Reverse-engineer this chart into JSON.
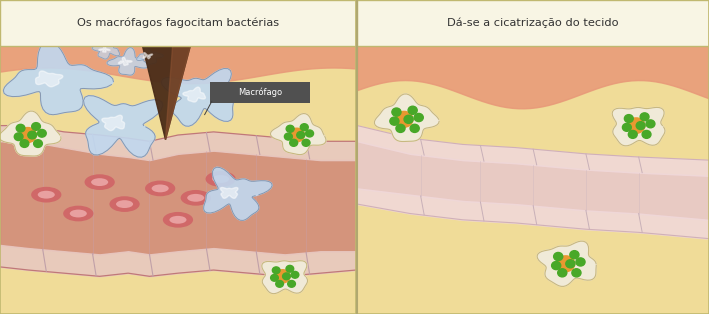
{
  "panel1_title": "Os macrófagos fagocitam bactérias",
  "panel2_title": "Dá-se a cicatrização do tecido",
  "macrofago_label": "Macrófago",
  "bg_color": "#f0dc98",
  "skin_top_color": "#e89878",
  "title_bg": "#f8f5e4",
  "title_border": "#c8c890",
  "vessel_fill": "#d08878",
  "vessel_border": "#c07878",
  "vessel_wall": "#e8c8c0",
  "vessel_healed_fill": "#e8c8c8",
  "vessel_healed_border": "#d0b0b8",
  "rbc_fill": "#d06868",
  "rbc_inner": "#e8a0a0",
  "macrophage_fill": "#c0d8f0",
  "macrophage_border": "#8090a8",
  "cell_fill": "#f0ead8",
  "cell_border": "#c8b880",
  "green_dot": "#48a828",
  "orange_dot": "#e89830",
  "arrow_dark": "#4a2c18",
  "arrow_mid": "#8a5030",
  "label_bg": "#505050",
  "label_fg": "#ffffff",
  "divider_color": "#b0a870",
  "outer_border": "#c0b870"
}
